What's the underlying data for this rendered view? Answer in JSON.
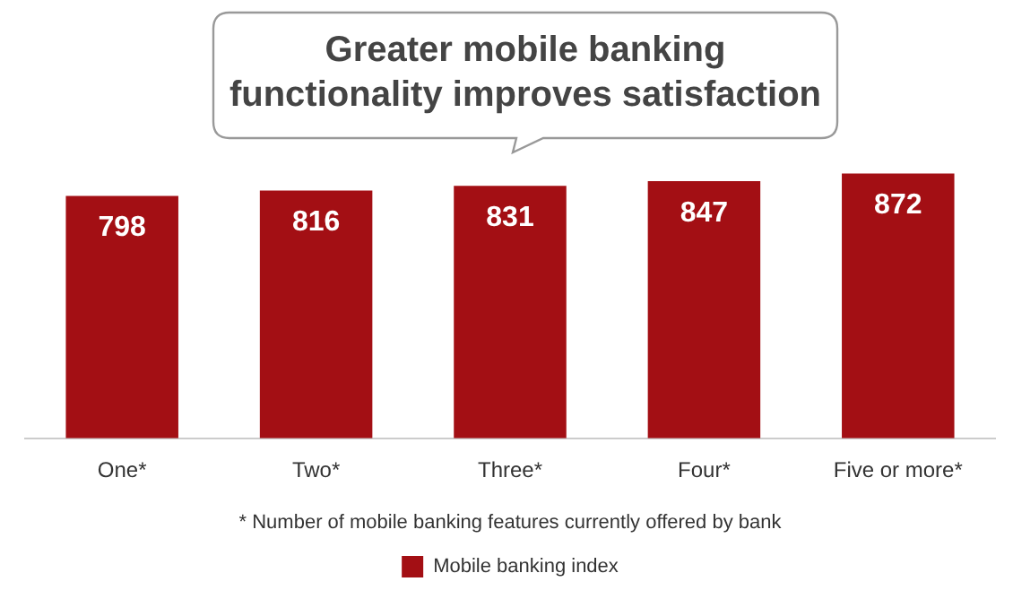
{
  "chart_data": {
    "type": "bar",
    "title": "Greater mobile banking functionality improves satisfaction",
    "categories": [
      "One*",
      "Two*",
      "Three*",
      "Four*",
      "Five or more*"
    ],
    "series": [
      {
        "name": "Mobile banking index",
        "color": "#a30f14",
        "values": [
          798,
          816,
          831,
          847,
          872
        ]
      }
    ],
    "data_labels": true,
    "grid": false,
    "legend": "bottom",
    "tick_labels": "x",
    "annotations": [
      "* Number of mobile banking features currently offered by bank"
    ]
  }
}
